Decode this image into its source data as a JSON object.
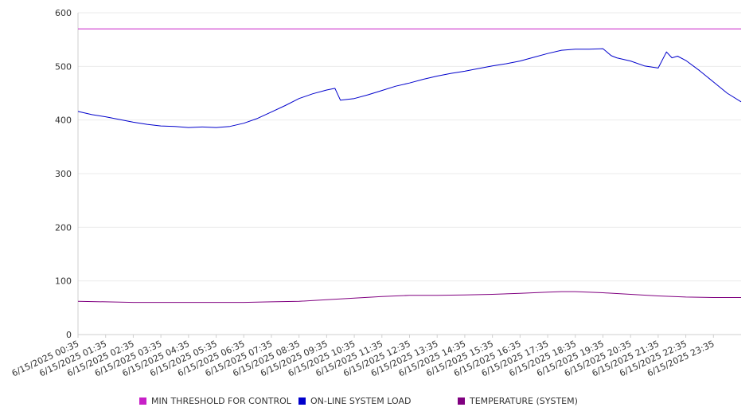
{
  "chart_data": {
    "type": "line",
    "title": "",
    "xlabel": "",
    "ylabel": "",
    "ylim": [
      0,
      600
    ],
    "yticks": [
      0,
      100,
      200,
      300,
      400,
      500,
      600
    ],
    "grid": true,
    "legend_position": "bottom",
    "x_tick_labels": [
      "6/15/2025 00:35",
      "6/15/2025 01:35",
      "6/15/2025 02:35",
      "6/15/2025 03:35",
      "6/15/2025 04:35",
      "6/15/2025 05:35",
      "6/15/2025 06:35",
      "6/15/2025 07:35",
      "6/15/2025 08:35",
      "6/15/2025 09:35",
      "6/15/2025 10:35",
      "6/15/2025 11:35",
      "6/15/2025 12:35",
      "6/15/2025 13:35",
      "6/15/2025 14:35",
      "6/15/2025 15:35",
      "6/15/2025 16:35",
      "6/15/2025 17:35",
      "6/15/2025 18:35",
      "6/15/2025 19:35",
      "6/15/2025 20:35",
      "6/15/2025 21:35",
      "6/15/2025 22:35",
      "6/15/2025 23:35"
    ],
    "x_range_hours": [
      0,
      24
    ],
    "series": [
      {
        "name": "MIN THRESHOLD FOR CONTROL",
        "color": "#c71fc7",
        "x": [
          0,
          24
        ],
        "values": [
          570,
          570
        ]
      },
      {
        "name": "ON-LINE SYSTEM LOAD",
        "color": "#0000cc",
        "x": [
          0,
          0.5,
          1,
          1.5,
          2,
          2.5,
          3,
          3.5,
          4,
          4.5,
          5,
          5.5,
          6,
          6.5,
          7,
          7.5,
          8,
          8.5,
          9,
          9.3,
          9.5,
          10,
          10.5,
          11,
          11.5,
          12,
          12.5,
          13,
          13.5,
          14,
          14.5,
          15,
          15.5,
          16,
          16.5,
          17,
          17.5,
          18,
          18.5,
          19,
          19.3,
          19.5,
          20,
          20.5,
          21,
          21.3,
          21.5,
          21.7,
          22,
          22.5,
          23,
          23.5,
          24
        ],
        "values": [
          416,
          410,
          406,
          401,
          396,
          392,
          389,
          388,
          386,
          387,
          386,
          388,
          394,
          403,
          415,
          427,
          440,
          449,
          456,
          459,
          437,
          440,
          447,
          455,
          463,
          469,
          476,
          482,
          487,
          491,
          496,
          501,
          505,
          510,
          517,
          524,
          530,
          532,
          532,
          533,
          520,
          516,
          510,
          501,
          497,
          527,
          516,
          519,
          511,
          492,
          471,
          450,
          434
        ]
      },
      {
        "name": "TEMPERATURE (SYSTEM)",
        "color": "#800080",
        "x": [
          0,
          1,
          2,
          3,
          4,
          5,
          6,
          7,
          8,
          9,
          10,
          11,
          12,
          13,
          14,
          15,
          16,
          17,
          17.5,
          18,
          19,
          20,
          21,
          22,
          23,
          24
        ],
        "values": [
          62,
          61,
          60,
          60,
          60,
          60,
          60,
          61,
          62,
          65,
          68,
          71,
          73,
          73,
          74,
          75,
          77,
          79,
          80,
          80,
          78,
          75,
          72,
          70,
          69,
          69
        ]
      }
    ]
  }
}
